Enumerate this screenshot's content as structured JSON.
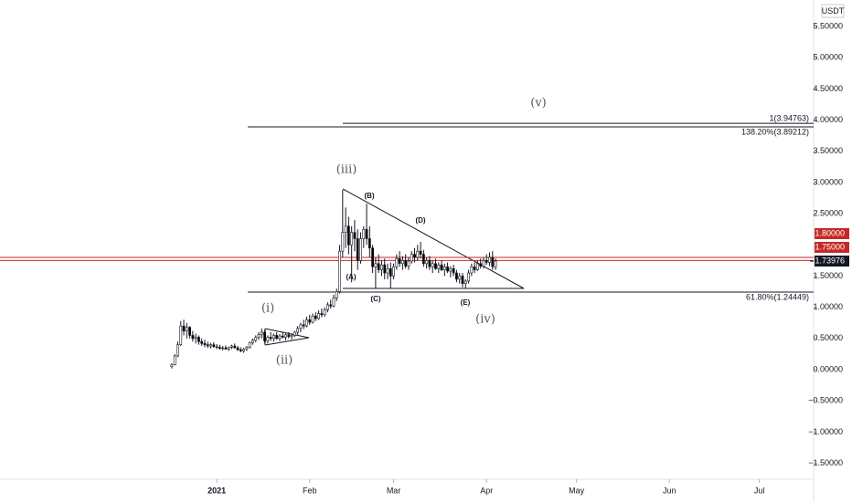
{
  "chart_data": {
    "type": "candlestick",
    "currency": "USDT",
    "xlim": [
      -72.3,
      199.1
    ],
    "ylim": [
      -1.755,
      5.925
    ],
    "xticks": [
      {
        "value": 0,
        "label": "2021"
      },
      {
        "value": 31,
        "label": "Feb"
      },
      {
        "value": 59,
        "label": "Mar"
      },
      {
        "value": 90,
        "label": "Apr"
      },
      {
        "value": 120,
        "label": "May"
      },
      {
        "value": 151,
        "label": "Jun"
      },
      {
        "value": 181,
        "label": "Jul"
      }
    ],
    "yticks": [
      {
        "value": 5.5,
        "label": "5.50000"
      },
      {
        "value": 5,
        "label": "5.00000"
      },
      {
        "value": 4.5,
        "label": "4.50000"
      },
      {
        "value": 4,
        "label": "4.00000"
      },
      {
        "value": 3.5,
        "label": "3.50000"
      },
      {
        "value": 3,
        "label": "3.00000"
      },
      {
        "value": 2.5,
        "label": "2.50000"
      },
      {
        "value": 1.5,
        "label": "1.50000"
      },
      {
        "value": 1,
        "label": "1.00000"
      },
      {
        "value": 0.5,
        "label": "0.50000"
      },
      {
        "value": 0,
        "label": "0.00000"
      },
      {
        "value": -0.5,
        "label": "−0.50000"
      },
      {
        "value": -1,
        "label": "−1.00000"
      },
      {
        "value": -1.5,
        "label": "−1.50000"
      }
    ],
    "up_color": "#ffffff",
    "down_color": "#000000",
    "x": [
      -15,
      -14,
      -13,
      -12,
      -11,
      -10,
      -9,
      -8,
      -7,
      -6,
      -5,
      -4,
      -3,
      -2,
      -1,
      0,
      1,
      2,
      3,
      4,
      5,
      6,
      7,
      8,
      9,
      10,
      11,
      12,
      13,
      14,
      15,
      16,
      17,
      18,
      19,
      20,
      21,
      22,
      23,
      24,
      25,
      26,
      27,
      28,
      29,
      30,
      31,
      32,
      33,
      34,
      35,
      36,
      37,
      38,
      39,
      40,
      41,
      42,
      43,
      44,
      45,
      46,
      47,
      48,
      49,
      50,
      51,
      52,
      53,
      54,
      55,
      56,
      57,
      58,
      59,
      60,
      61,
      62,
      63,
      64,
      65,
      66,
      67,
      68,
      69,
      70,
      71,
      72,
      73,
      74,
      75,
      76,
      77,
      78,
      79,
      80,
      81,
      82,
      83,
      84,
      85,
      86,
      87,
      88,
      89,
      90,
      91,
      92,
      93
    ],
    "ohlc": [
      [
        0.05,
        0.1,
        0.02,
        0.08
      ],
      [
        0.08,
        0.25,
        0.07,
        0.22
      ],
      [
        0.22,
        0.45,
        0.2,
        0.4
      ],
      [
        0.4,
        0.78,
        0.38,
        0.7
      ],
      [
        0.7,
        0.8,
        0.55,
        0.62
      ],
      [
        0.62,
        0.75,
        0.5,
        0.68
      ],
      [
        0.68,
        0.7,
        0.5,
        0.55
      ],
      [
        0.55,
        0.62,
        0.45,
        0.5
      ],
      [
        0.5,
        0.58,
        0.42,
        0.52
      ],
      [
        0.52,
        0.55,
        0.4,
        0.45
      ],
      [
        0.45,
        0.5,
        0.38,
        0.42
      ],
      [
        0.42,
        0.48,
        0.36,
        0.4
      ],
      [
        0.4,
        0.45,
        0.35,
        0.38
      ],
      [
        0.38,
        0.43,
        0.34,
        0.4
      ],
      [
        0.4,
        0.44,
        0.35,
        0.37
      ],
      [
        0.37,
        0.41,
        0.33,
        0.36
      ],
      [
        0.36,
        0.4,
        0.32,
        0.34
      ],
      [
        0.34,
        0.38,
        0.31,
        0.35
      ],
      [
        0.35,
        0.39,
        0.32,
        0.33
      ],
      [
        0.33,
        0.37,
        0.3,
        0.36
      ],
      [
        0.36,
        0.4,
        0.33,
        0.38
      ],
      [
        0.38,
        0.42,
        0.34,
        0.35
      ],
      [
        0.35,
        0.38,
        0.3,
        0.32
      ],
      [
        0.32,
        0.36,
        0.28,
        0.3
      ],
      [
        0.3,
        0.35,
        0.27,
        0.33
      ],
      [
        0.33,
        0.38,
        0.3,
        0.36
      ],
      [
        0.36,
        0.45,
        0.34,
        0.43
      ],
      [
        0.43,
        0.5,
        0.4,
        0.47
      ],
      [
        0.47,
        0.55,
        0.44,
        0.52
      ],
      [
        0.52,
        0.6,
        0.48,
        0.56
      ],
      [
        0.56,
        0.66,
        0.5,
        0.6
      ],
      [
        0.6,
        0.64,
        0.42,
        0.46
      ],
      [
        0.46,
        0.55,
        0.42,
        0.52
      ],
      [
        0.52,
        0.6,
        0.46,
        0.5
      ],
      [
        0.5,
        0.58,
        0.45,
        0.55
      ],
      [
        0.55,
        0.6,
        0.48,
        0.5
      ],
      [
        0.5,
        0.57,
        0.46,
        0.54
      ],
      [
        0.54,
        0.6,
        0.5,
        0.52
      ],
      [
        0.52,
        0.58,
        0.47,
        0.56
      ],
      [
        0.56,
        0.6,
        0.5,
        0.53
      ],
      [
        0.53,
        0.58,
        0.48,
        0.55
      ],
      [
        0.55,
        0.62,
        0.52,
        0.6
      ],
      [
        0.6,
        0.7,
        0.56,
        0.66
      ],
      [
        0.66,
        0.75,
        0.6,
        0.72
      ],
      [
        0.72,
        0.8,
        0.65,
        0.7
      ],
      [
        0.7,
        0.85,
        0.68,
        0.8
      ],
      [
        0.8,
        0.88,
        0.72,
        0.76
      ],
      [
        0.76,
        0.9,
        0.74,
        0.86
      ],
      [
        0.86,
        0.92,
        0.78,
        0.82
      ],
      [
        0.82,
        0.95,
        0.8,
        0.9
      ],
      [
        0.9,
        0.98,
        0.84,
        0.88
      ],
      [
        0.88,
        1.0,
        0.85,
        0.96
      ],
      [
        0.96,
        1.08,
        0.92,
        1.04
      ],
      [
        1.04,
        1.12,
        0.98,
        1.02
      ],
      [
        1.02,
        1.2,
        1.0,
        1.15
      ],
      [
        1.15,
        1.3,
        1.1,
        1.25
      ],
      [
        1.25,
        2.0,
        1.22,
        1.9
      ],
      [
        1.9,
        2.88,
        1.8,
        2.2
      ],
      [
        2.2,
        2.6,
        1.95,
        2.3
      ],
      [
        2.3,
        2.45,
        1.85,
        2.0
      ],
      [
        2.0,
        2.3,
        1.4,
        2.2
      ],
      [
        2.2,
        2.4,
        1.9,
        2.1
      ],
      [
        2.1,
        2.25,
        1.6,
        1.75
      ],
      [
        1.75,
        2.2,
        1.7,
        2.1
      ],
      [
        2.1,
        2.3,
        1.95,
        2.25
      ],
      [
        2.25,
        2.66,
        2.0,
        2.1
      ],
      [
        2.1,
        2.3,
        1.8,
        1.95
      ],
      [
        1.95,
        2.0,
        1.55,
        1.65
      ],
      [
        1.65,
        1.8,
        1.3,
        1.7
      ],
      [
        1.7,
        1.85,
        1.55,
        1.6
      ],
      [
        1.6,
        1.75,
        1.5,
        1.68
      ],
      [
        1.68,
        1.78,
        1.45,
        1.55
      ],
      [
        1.55,
        1.7,
        1.45,
        1.62
      ],
      [
        1.62,
        1.72,
        1.3,
        1.5
      ],
      [
        1.5,
        1.7,
        1.45,
        1.65
      ],
      [
        1.65,
        1.85,
        1.6,
        1.78
      ],
      [
        1.78,
        1.9,
        1.65,
        1.7
      ],
      [
        1.7,
        1.82,
        1.6,
        1.75
      ],
      [
        1.75,
        1.85,
        1.62,
        1.66
      ],
      [
        1.66,
        1.8,
        1.6,
        1.74
      ],
      [
        1.74,
        1.9,
        1.7,
        1.85
      ],
      [
        1.85,
        1.95,
        1.72,
        1.8
      ],
      [
        1.8,
        2.0,
        1.75,
        1.9
      ],
      [
        1.9,
        2.05,
        1.78,
        1.85
      ],
      [
        1.85,
        1.92,
        1.65,
        1.7
      ],
      [
        1.7,
        1.8,
        1.62,
        1.75
      ],
      [
        1.75,
        1.82,
        1.6,
        1.65
      ],
      [
        1.65,
        1.75,
        1.55,
        1.7
      ],
      [
        1.7,
        1.78,
        1.6,
        1.62
      ],
      [
        1.62,
        1.72,
        1.55,
        1.68
      ],
      [
        1.68,
        1.75,
        1.58,
        1.6
      ],
      [
        1.6,
        1.7,
        1.5,
        1.65
      ],
      [
        1.65,
        1.72,
        1.55,
        1.58
      ],
      [
        1.58,
        1.66,
        1.48,
        1.62
      ],
      [
        1.62,
        1.68,
        1.5,
        1.55
      ],
      [
        1.55,
        1.6,
        1.4,
        1.45
      ],
      [
        1.45,
        1.55,
        1.38,
        1.5
      ],
      [
        1.5,
        1.55,
        1.32,
        1.38
      ],
      [
        1.38,
        1.45,
        1.3,
        1.42
      ],
      [
        1.42,
        1.6,
        1.38,
        1.55
      ],
      [
        1.55,
        1.7,
        1.5,
        1.65
      ],
      [
        1.65,
        1.72,
        1.55,
        1.6
      ],
      [
        1.6,
        1.75,
        1.58,
        1.7
      ],
      [
        1.7,
        1.78,
        1.62,
        1.66
      ],
      [
        1.66,
        1.8,
        1.62,
        1.75
      ],
      [
        1.75,
        1.85,
        1.68,
        1.72
      ],
      [
        1.72,
        1.88,
        1.66,
        1.8
      ],
      [
        1.8,
        1.9,
        1.6,
        1.65
      ],
      [
        1.65,
        1.78,
        1.6,
        1.74
      ]
    ],
    "fib_levels": [
      {
        "value": 3.94763,
        "label": "1(3.94763)"
      },
      {
        "value": 3.89212,
        "label": "138.20%(3.89212)"
      },
      {
        "value": 1.24449,
        "label": "61.80%(1.24449)"
      }
    ],
    "price_lines": [
      {
        "value": 1.8,
        "label": "1.80000",
        "color": "#c62828"
      },
      {
        "value": 1.75,
        "label": "1.75000",
        "color": "#c62828"
      }
    ],
    "last_price": {
      "value": 1.73976,
      "label": "1.73976",
      "color": "#131722"
    },
    "wave_labels": [
      "(v)",
      "(iii)",
      "(i)",
      "(ii)",
      "(iv)",
      "(A)",
      "(B)",
      "(C)",
      "(D)",
      "(E)"
    ]
  }
}
